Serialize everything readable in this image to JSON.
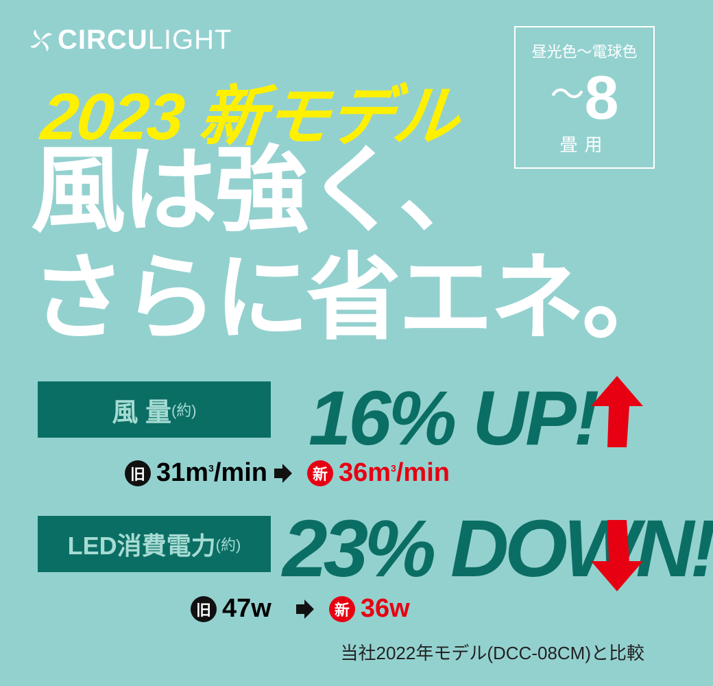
{
  "logo": {
    "bold": "CIRCU",
    "light": "LIGHT",
    "icon": "fan-icon"
  },
  "badge": {
    "top": "昼光色〜電球色",
    "tilde": "〜",
    "number": "8",
    "unit": "畳用"
  },
  "subtitle": "2023 新モデル",
  "headline": {
    "line1": "風は強く、",
    "line2": "さらに省エネ。"
  },
  "airflow": {
    "label": "風 量",
    "label_note": "(約)",
    "headline": "16% UP!",
    "old_badge": "旧",
    "old_value": "31m",
    "old_sup": "3",
    "old_unit": "/min",
    "new_badge": "新",
    "new_value": "36m",
    "new_sup": "3",
    "new_unit": "/min",
    "arrow": "arrow-up-icon"
  },
  "power": {
    "label": "LED消費電力",
    "label_note": "(約)",
    "headline": "23% DOWN!",
    "old_badge": "旧",
    "old_value": "47w",
    "new_badge": "新",
    "new_value": "36w",
    "arrow": "arrow-down-icon"
  },
  "footnote": "当社2022年モデル(DCC-08CM)と比較",
  "colors": {
    "background": "#93d1cf",
    "accent_green": "#0b6e64",
    "yellow": "#fff000",
    "red": "#e60012"
  }
}
